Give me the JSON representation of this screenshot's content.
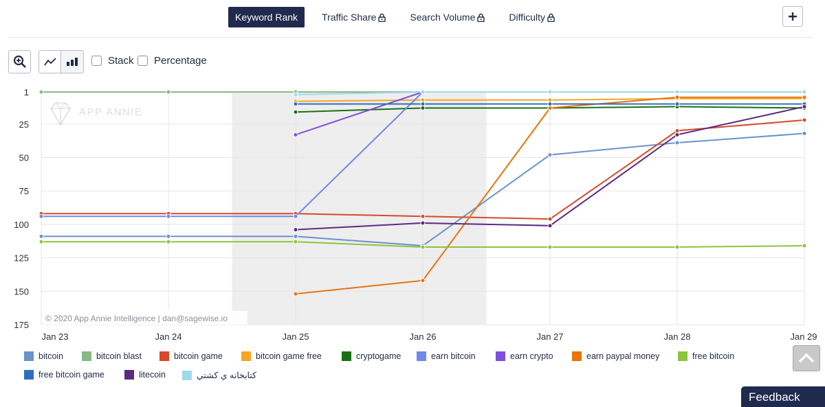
{
  "tabs": [
    {
      "label": "Keyword Rank",
      "active": true,
      "locked": false
    },
    {
      "label": "Traffic Share",
      "active": false,
      "locked": true
    },
    {
      "label": "Search Volume",
      "active": false,
      "locked": true
    },
    {
      "label": "Difficulty",
      "active": false,
      "locked": true
    }
  ],
  "toolbar": {
    "stack_label": "Stack",
    "percentage_label": "Percentage"
  },
  "feedback_label": "Feedback",
  "chart_data": {
    "type": "line",
    "ylim": [
      175,
      1
    ],
    "y_ticks": [
      1,
      25,
      50,
      75,
      100,
      125,
      150,
      175
    ],
    "y_inverted": true,
    "categories": [
      "Jan 23",
      "Jan 24",
      "Jan 25",
      "Jan 26",
      "Jan 27",
      "Jan 28",
      "Jan 29"
    ],
    "shaded_weekend": [
      "Jan 24.5",
      "Jan 26.5"
    ],
    "watermark": "APP ANNIE",
    "copyright": "© 2020 App Annie Intelligence | dan@sagewise.io",
    "series": [
      {
        "name": "bitcoin",
        "color": "#6a93cd",
        "values": [
          109,
          109,
          109,
          116,
          48,
          39,
          32
        ]
      },
      {
        "name": "bitcoin blast",
        "color": "#86b984",
        "values": [
          1,
          1,
          1,
          1,
          1,
          1,
          1
        ]
      },
      {
        "name": "bitcoin game",
        "color": "#d6492a",
        "values": [
          92,
          92,
          92,
          94,
          96,
          30,
          22
        ]
      },
      {
        "name": "bitcoin game free",
        "color": "#f5a623",
        "values": [
          null,
          null,
          8,
          7,
          7,
          6,
          6
        ]
      },
      {
        "name": "cryptogame",
        "color": "#1a7014",
        "values": [
          null,
          null,
          16,
          13,
          13,
          12,
          13
        ]
      },
      {
        "name": "earn bitcoin",
        "color": "#7088ea",
        "values": [
          94,
          94,
          94,
          1,
          1,
          1,
          1
        ]
      },
      {
        "name": "earn crypto",
        "color": "#7c4fe0",
        "values": [
          null,
          null,
          33,
          1,
          null,
          null,
          null
        ]
      },
      {
        "name": "earn paypal money",
        "color": "#e8720c",
        "values": [
          null,
          null,
          152,
          142,
          13,
          5,
          5
        ]
      },
      {
        "name": "free bitcoin",
        "color": "#8cc43c",
        "values": [
          113,
          113,
          113,
          117,
          117,
          117,
          116
        ]
      },
      {
        "name": "free bitcoin game",
        "color": "#2e6fbd",
        "values": [
          null,
          null,
          10,
          10,
          10,
          10,
          10
        ]
      },
      {
        "name": "litecoin",
        "color": "#5c2a82",
        "values": [
          null,
          null,
          104,
          99,
          101,
          33,
          12
        ]
      },
      {
        "name": "كتابخانه ي كشتي",
        "color": "#9fd8ec",
        "values": [
          null,
          null,
          3,
          1,
          1,
          1,
          1
        ]
      }
    ]
  }
}
